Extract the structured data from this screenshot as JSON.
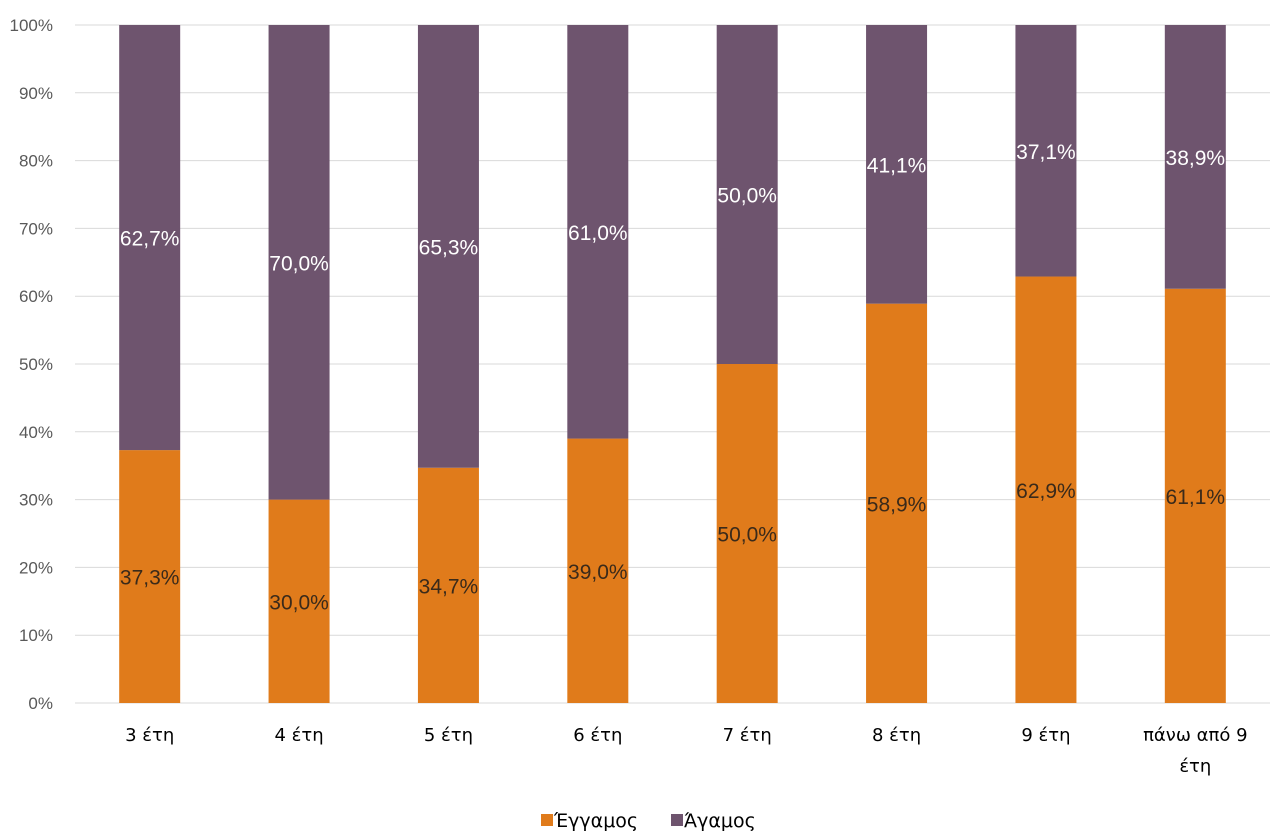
{
  "chart_data": {
    "type": "bar",
    "stacked": true,
    "percent": true,
    "categories": [
      [
        "3 έτη"
      ],
      [
        "4 έτη"
      ],
      [
        "5 έτη"
      ],
      [
        "6 έτη"
      ],
      [
        "7 έτη"
      ],
      [
        "8 έτη"
      ],
      [
        "9 έτη"
      ],
      [
        "πάνω από 9",
        "έτη"
      ]
    ],
    "series": [
      {
        "name": "Έγγαμος",
        "color": "#E07B1B",
        "label_color": "#3a2a1a",
        "values": [
          37.3,
          30.0,
          34.7,
          39.0,
          50.0,
          58.9,
          62.9,
          61.1
        ],
        "labels": [
          "37,3%",
          "30,0%",
          "34,7%",
          "39,0%",
          "50,0%",
          "58,9%",
          "62,9%",
          "61,1%"
        ]
      },
      {
        "name": "Άγαμος",
        "color": "#6E546E",
        "label_color": "#ffffff",
        "values": [
          62.7,
          70.0,
          65.3,
          61.0,
          50.0,
          41.1,
          37.1,
          38.9
        ],
        "labels": [
          "62,7%",
          "70,0%",
          "65,3%",
          "61,0%",
          "50,0%",
          "41,1%",
          "37,1%",
          "38,9%"
        ]
      }
    ],
    "ylim": [
      0,
      100
    ],
    "yticks": [
      "0%",
      "10%",
      "20%",
      "30%",
      "40%",
      "50%",
      "60%",
      "70%",
      "80%",
      "90%",
      "100%"
    ],
    "grid": true,
    "gridColor": "#D9D9D9",
    "legend_position": "bottom"
  }
}
